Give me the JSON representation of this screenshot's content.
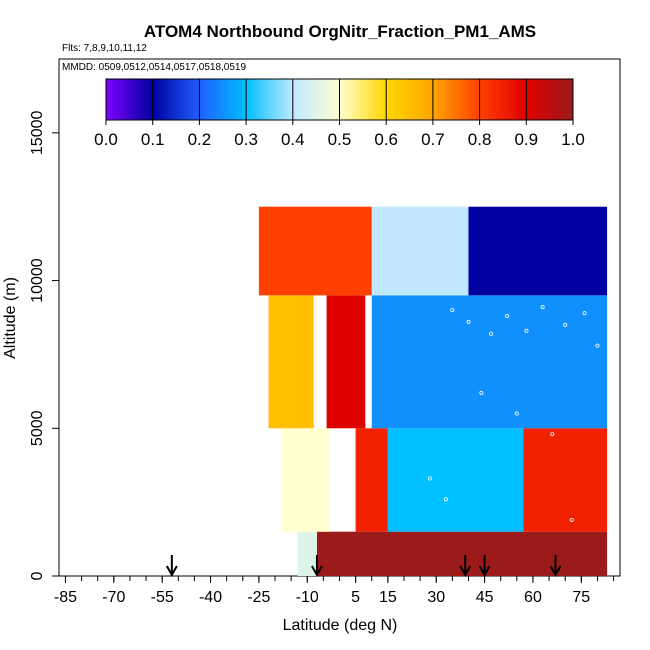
{
  "chart_data": {
    "type": "heatmap",
    "title": "ATOM4 Northbound OrgNitr_Fraction_PM1_AMS",
    "flights_label": "Flts: 7,8,9,10,11,12",
    "mmdd_label": "MMDD: 0509,0512,0514,0517,0518,0519",
    "xlabel": "Latitude (deg N)",
    "ylabel": "Altitude (m)",
    "xlim": [
      -87,
      87
    ],
    "ylim": [
      0,
      17500
    ],
    "x_ticks": [
      "-85",
      "-70",
      "-55",
      "-40",
      "-25",
      "-10",
      "5",
      "15",
      "30",
      "45",
      "60",
      "75"
    ],
    "x_tick_values": [
      -85,
      -70,
      -55,
      -40,
      -25,
      -10,
      5,
      15,
      30,
      45,
      60,
      75
    ],
    "y_ticks": [
      "0",
      "5000",
      "10000",
      "15000"
    ],
    "y_tick_values": [
      0,
      5000,
      10000,
      15000
    ],
    "colorbar": {
      "ticks": [
        "0.0",
        "0.1",
        "0.2",
        "0.3",
        "0.4",
        "0.5",
        "0.6",
        "0.7",
        "0.8",
        "0.9",
        "1.0"
      ],
      "range": [
        0,
        1
      ],
      "colors": [
        "#7f00ff",
        "#0000a0",
        "#1f5fff",
        "#00bfff",
        "#bfe8ff",
        "#ffffd0",
        "#ffd700",
        "#ffa500",
        "#ff4000",
        "#e00000",
        "#9b1b1b"
      ]
    },
    "profile_arrows_lat": [
      -52,
      -7,
      39,
      45,
      67
    ],
    "value_bands": [
      {
        "alt_range": [
          0,
          1500
        ],
        "lat_range": [
          -7,
          83
        ],
        "value": 1.0
      },
      {
        "alt_range": [
          0,
          1500
        ],
        "lat_range": [
          -13,
          -7
        ],
        "value": 0.45
      },
      {
        "alt_range": [
          1500,
          5000
        ],
        "lat_range": [
          -18,
          -3
        ],
        "value": 0.5
      },
      {
        "alt_range": [
          1500,
          5000
        ],
        "lat_range": [
          5,
          15
        ],
        "value": 0.85
      },
      {
        "alt_range": [
          1500,
          5000
        ],
        "lat_range": [
          15,
          57
        ],
        "value": 0.3
      },
      {
        "alt_range": [
          1500,
          5000
        ],
        "lat_range": [
          57,
          83
        ],
        "value": 0.85
      },
      {
        "alt_range": [
          5000,
          9500
        ],
        "lat_range": [
          -22,
          -8
        ],
        "value": 0.65
      },
      {
        "alt_range": [
          5000,
          9500
        ],
        "lat_range": [
          -4,
          8
        ],
        "value": 0.9
      },
      {
        "alt_range": [
          5000,
          9500
        ],
        "lat_range": [
          10,
          83
        ],
        "value": 0.25
      },
      {
        "alt_range": [
          9500,
          12500
        ],
        "lat_range": [
          -25,
          10
        ],
        "value": 0.8
      },
      {
        "alt_range": [
          9500,
          12500
        ],
        "lat_range": [
          10,
          40
        ],
        "value": 0.4
      },
      {
        "alt_range": [
          9500,
          12500
        ],
        "lat_range": [
          40,
          83
        ],
        "value": 0.1
      }
    ]
  },
  "chart_marks": {
    "title_text": "ATOM4 Northbound OrgNitr_Fraction_PM1_AMS",
    "flights_text": "Flts: 7,8,9,10,11,12",
    "mmdd_text": "MMDD: 0509,0512,0514,0517,0518,0519"
  }
}
